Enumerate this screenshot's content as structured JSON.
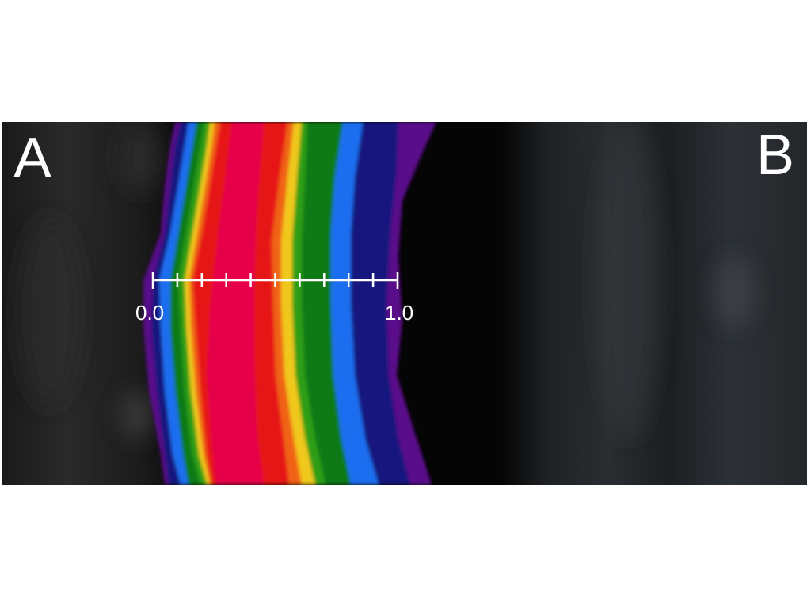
{
  "panels": {
    "left_label": "A",
    "right_label": "B"
  },
  "colorbar": {
    "min_label": "0.0",
    "max_label": "1.0",
    "tick_count": 11,
    "colors": [
      "#5a0a8a",
      "#12127e",
      "#1e6ef0",
      "#0a7a14",
      "#2f9e12",
      "#f0c81c",
      "#f06414",
      "#e61414",
      "#e6004a"
    ]
  },
  "background": {
    "left_tone": "#2a2a2a",
    "right_tone": "#2c3034",
    "dark_gap": "#050505"
  }
}
